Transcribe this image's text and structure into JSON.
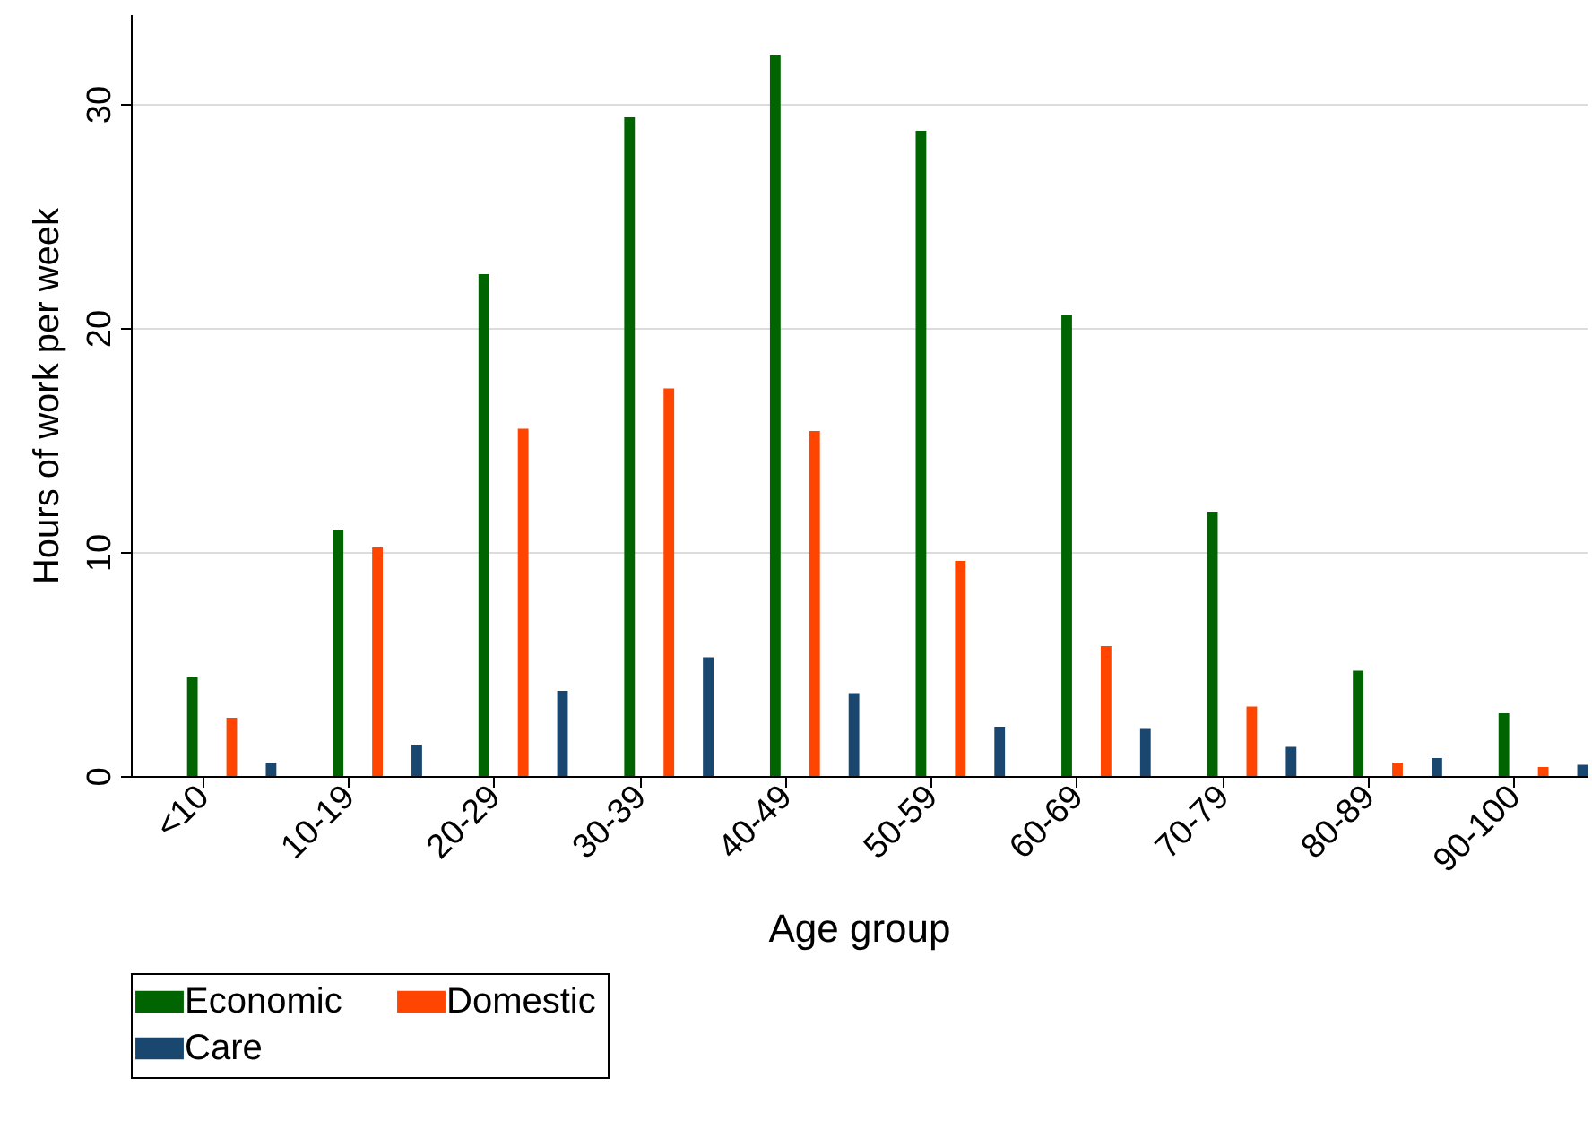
{
  "chart_data": {
    "type": "bar",
    "xlabel": "Age group",
    "ylabel": "Hours of work per week",
    "categories": [
      "<10",
      "10-19",
      "20-29",
      "30-39",
      "40-49",
      "50-59",
      "60-69",
      "70-79",
      "80-89",
      "90-100"
    ],
    "series": [
      {
        "name": "Economic",
        "color": "#006400",
        "values": [
          4.4,
          11.0,
          22.4,
          29.4,
          32.2,
          28.8,
          20.6,
          11.8,
          4.7,
          2.8
        ]
      },
      {
        "name": "Domestic",
        "color": "#ff4500",
        "values": [
          2.6,
          10.2,
          15.5,
          17.3,
          15.4,
          9.6,
          5.8,
          3.1,
          0.6,
          0.4
        ]
      },
      {
        "name": "Care",
        "color": "#1a476f",
        "values": [
          0.6,
          1.4,
          3.8,
          5.3,
          3.7,
          2.2,
          2.1,
          1.3,
          0.8,
          0.5
        ]
      }
    ],
    "ylim": [
      0,
      34
    ],
    "yticks": [
      0,
      10,
      20,
      30
    ],
    "grid": "y",
    "legend": "bottom"
  }
}
